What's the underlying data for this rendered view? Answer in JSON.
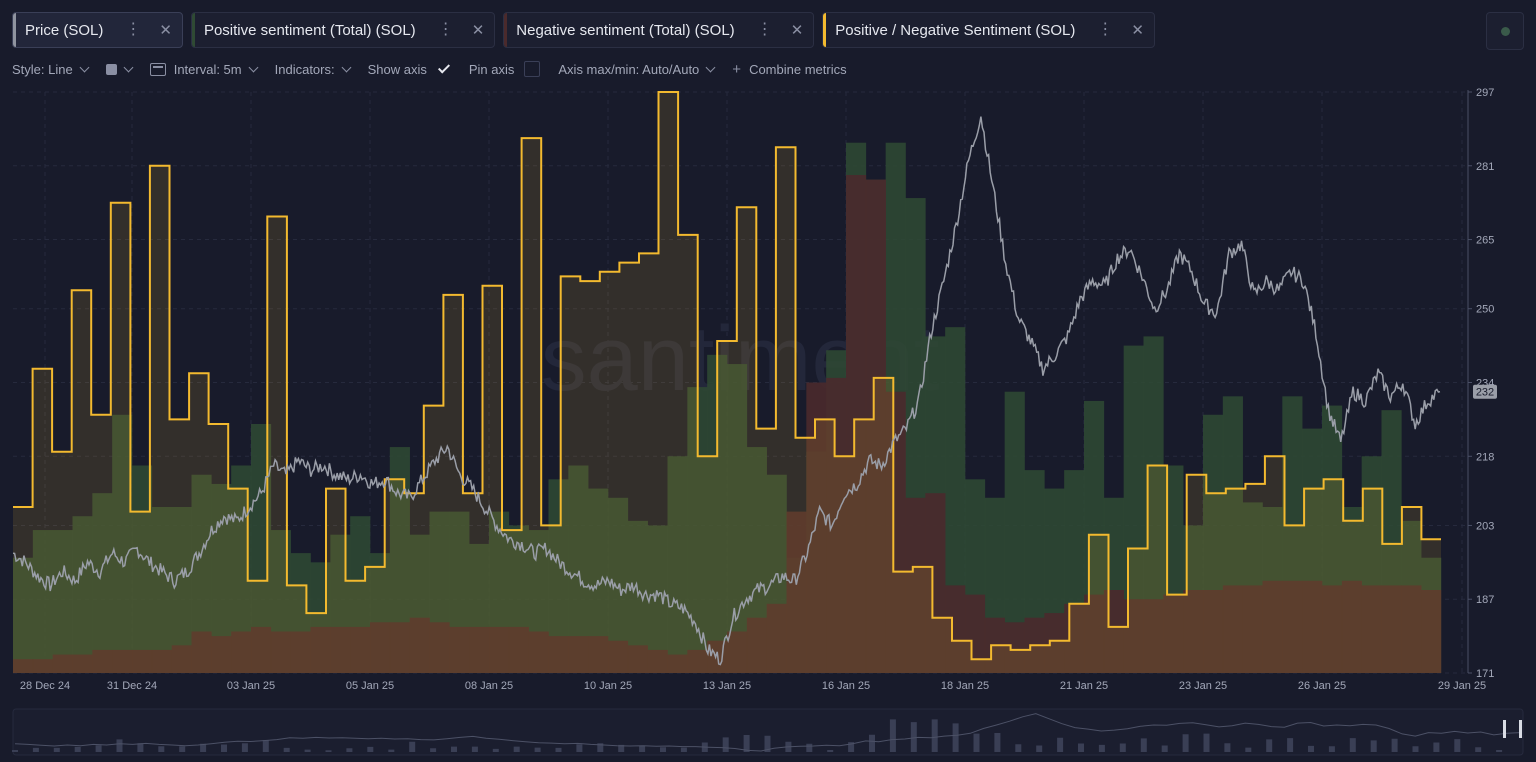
{
  "tabs": [
    {
      "label": "Price (SOL)",
      "color": "#8f949f",
      "active": true
    },
    {
      "label": "Positive sentiment (Total) (SOL)",
      "color": "#2f4a34"
    },
    {
      "label": "Negative sentiment (Total) (SOL)",
      "color": "#4a2a2c"
    },
    {
      "label": "Positive / Negative Sentiment (SOL)",
      "color": "#f3ba2f"
    }
  ],
  "toolbar": {
    "style_label": "Style: Line",
    "interval_label": "Interval: 5m",
    "indicators_label": "Indicators:",
    "show_axis_label": "Show axis",
    "pin_axis_label": "Pin axis",
    "axis_maxmin_label": "Axis max/min: Auto/Auto",
    "combine_label": "Combine metrics"
  },
  "watermark": "santiment",
  "chart_data": {
    "type": "line",
    "x_ticks": [
      "28 Dec 24",
      "31 Dec 24",
      "03 Jan 25",
      "05 Jan 25",
      "08 Jan 25",
      "10 Jan 25",
      "13 Jan 25",
      "16 Jan 25",
      "18 Jan 25",
      "21 Jan 25",
      "23 Jan 25",
      "26 Jan 25",
      "29 Jan 25"
    ],
    "y_ticks": [
      171,
      187,
      203,
      218,
      234,
      250,
      265,
      281,
      297
    ],
    "ylim": [
      171,
      297
    ],
    "last_price_label": "232",
    "colors": {
      "price": "#9a9ea8",
      "positive": "#2f4a34",
      "negative": "#4a2a2c",
      "ratio": "#f3ba2f"
    },
    "series": [
      {
        "name": "Price (SOL)",
        "kind": "line",
        "values": [
          197,
          195,
          192,
          190,
          193,
          191,
          195,
          193,
          197,
          195,
          198,
          195,
          193,
          191,
          193,
          197,
          202,
          205,
          204,
          207,
          210,
          216,
          214,
          217,
          215,
          216,
          214,
          213,
          214,
          212,
          213,
          210,
          209,
          213,
          217,
          220,
          214,
          211,
          207,
          203,
          200,
          199,
          197,
          198,
          195,
          193,
          191,
          190,
          191,
          189,
          190,
          188,
          188,
          186,
          185,
          182,
          176,
          174,
          183,
          187,
          189,
          190,
          192,
          191,
          197,
          206,
          203,
          210,
          212,
          217,
          216,
          221,
          224,
          230,
          245,
          256,
          268,
          282,
          292,
          276,
          260,
          248,
          243,
          237,
          240,
          244,
          252,
          256,
          255,
          261,
          263,
          257,
          250,
          254,
          262,
          258,
          251,
          249,
          262,
          264,
          253,
          256,
          254,
          258,
          256,
          245,
          228,
          221,
          232,
          230,
          236,
          231,
          234,
          225,
          230,
          232
        ]
      },
      {
        "name": "Positive sentiment (Total) (SOL)",
        "kind": "bars",
        "values": [
          196,
          202,
          202,
          205,
          210,
          227,
          216,
          207,
          207,
          214,
          212,
          216,
          225,
          202,
          197,
          195,
          201,
          205,
          197,
          220,
          201,
          206,
          206,
          199,
          206,
          203,
          202,
          213,
          216,
          211,
          209,
          204,
          203,
          218,
          233,
          240,
          238,
          220,
          214,
          196,
          219,
          241,
          286,
          278,
          286,
          274,
          244,
          246,
          213,
          209,
          232,
          215,
          211,
          215,
          230,
          209,
          242,
          244,
          216,
          203,
          227,
          231,
          208,
          207,
          231,
          224,
          229,
          207,
          218,
          228,
          204,
          196
        ]
      },
      {
        "name": "Negative sentiment (Total) (SOL)",
        "kind": "bars",
        "values": [
          174,
          174,
          175,
          175,
          176,
          176,
          176,
          176,
          177,
          180,
          179,
          180,
          181,
          180,
          180,
          181,
          181,
          181,
          182,
          182,
          183,
          182,
          181,
          181,
          181,
          181,
          180,
          179,
          179,
          179,
          178,
          177,
          176,
          175,
          176,
          178,
          180,
          183,
          186,
          206,
          234,
          235,
          279,
          278,
          232,
          209,
          210,
          190,
          188,
          183,
          182,
          183,
          184,
          186,
          188,
          189,
          187,
          187,
          188,
          189,
          189,
          190,
          190,
          191,
          191,
          191,
          190,
          191,
          190,
          190,
          190,
          189
        ]
      },
      {
        "name": "Positive / Negative Sentiment (SOL)",
        "kind": "step",
        "values": [
          207,
          237,
          219,
          254,
          227,
          273,
          206,
          281,
          226,
          236,
          225,
          211,
          191,
          270,
          190,
          184,
          211,
          191,
          194,
          213,
          210,
          229,
          253,
          210,
          255,
          202,
          287,
          203,
          257,
          256,
          258,
          260,
          262,
          297,
          266,
          218,
          243,
          272,
          224,
          285,
          222,
          226,
          218,
          226,
          235,
          193,
          194,
          183,
          178,
          174,
          177,
          176,
          177,
          178,
          186,
          201,
          181,
          198,
          216,
          188,
          214,
          210,
          211,
          212,
          218,
          203,
          211,
          213,
          204,
          211,
          199,
          207,
          200
        ]
      }
    ]
  }
}
